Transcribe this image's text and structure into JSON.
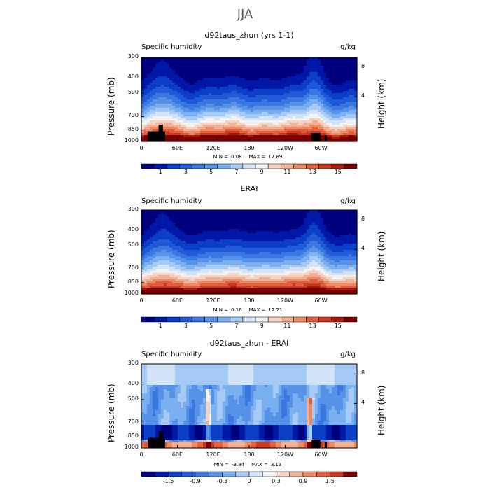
{
  "main_title": "JJA",
  "colors": {
    "humidity_scale": [
      "#00007f",
      "#0018a8",
      "#0b3fc8",
      "#1f5bd8",
      "#3878e0",
      "#5592e8",
      "#7ab0f0",
      "#a6caf6",
      "#d3e3f8",
      "#f2f2f2",
      "#f6d3c2",
      "#f2b195",
      "#ec8a68",
      "#e25f3e",
      "#cc3a1e",
      "#a81b0a",
      "#7a0000"
    ],
    "diff_scale": [
      "#00007f",
      "#0018a8",
      "#0b3fc8",
      "#1f5bd8",
      "#3878e0",
      "#5592e8",
      "#7ab0f0",
      "#a6caf6",
      "#d3e3f8",
      "#f2f2f2",
      "#f6d3c2",
      "#f2b195",
      "#ec8a68",
      "#e25f3e",
      "#cc3a1e",
      "#7a0000"
    ],
    "terrain": "#000000"
  },
  "chart_data": [
    {
      "type": "heatmap",
      "title": "d92taus_zhun (yrs 1-1)",
      "left_label": "Specific humidity",
      "right_label": "g/kg",
      "ylabel": "Pressure (mb)",
      "y2label": "Height (km)",
      "x_ticks": [
        "0",
        "60E",
        "120E",
        "180",
        "120W",
        "60W"
      ],
      "y_ticks": [
        "300",
        "400",
        "500",
        "700",
        "850",
        "1000"
      ],
      "y2_ticks": [
        "8",
        "4"
      ],
      "ylim": [
        1000,
        300
      ],
      "min_label": "MIN =",
      "min_value": "0.08",
      "max_label": "MAX =",
      "max_value": "17.89",
      "colorbar_labels": [
        "1",
        "3",
        "5",
        "7",
        "9",
        "11",
        "13",
        "15"
      ]
    },
    {
      "type": "heatmap",
      "title": "ERAI",
      "left_label": "Specific humidity",
      "right_label": "g/kg",
      "ylabel": "Pressure (mb)",
      "y2label": "Height (km)",
      "x_ticks": [
        "0",
        "60E",
        "120E",
        "180",
        "120W",
        "60W"
      ],
      "y_ticks": [
        "300",
        "400",
        "500",
        "700",
        "850",
        "1000"
      ],
      "y2_ticks": [
        "8",
        "4"
      ],
      "ylim": [
        1000,
        300
      ],
      "min_label": "MIN =",
      "min_value": "0.16",
      "max_label": "MAX =",
      "max_value": "17.21",
      "colorbar_labels": [
        "1",
        "3",
        "5",
        "7",
        "9",
        "11",
        "13",
        "15"
      ]
    },
    {
      "type": "heatmap",
      "title": "d92taus_zhun - ERAI",
      "left_label": "Specific humidity",
      "right_label": "g/kg",
      "ylabel": "Pressure (mb)",
      "y2label": "Height (km)",
      "x_ticks": [
        "0",
        "60E",
        "120E",
        "180",
        "120W",
        "60W"
      ],
      "y_ticks": [
        "300",
        "400",
        "500",
        "700",
        "850",
        "1000"
      ],
      "y2_ticks": [
        "8",
        "4"
      ],
      "ylim": [
        1000,
        300
      ],
      "min_label": "MIN =",
      "min_value": "-3.84",
      "max_label": "MAX =",
      "max_value": "3.13",
      "colorbar_labels": [
        "-1.5",
        "-0.9",
        "-0.3",
        "0",
        "0.3",
        "0.9",
        "1.5"
      ]
    }
  ]
}
